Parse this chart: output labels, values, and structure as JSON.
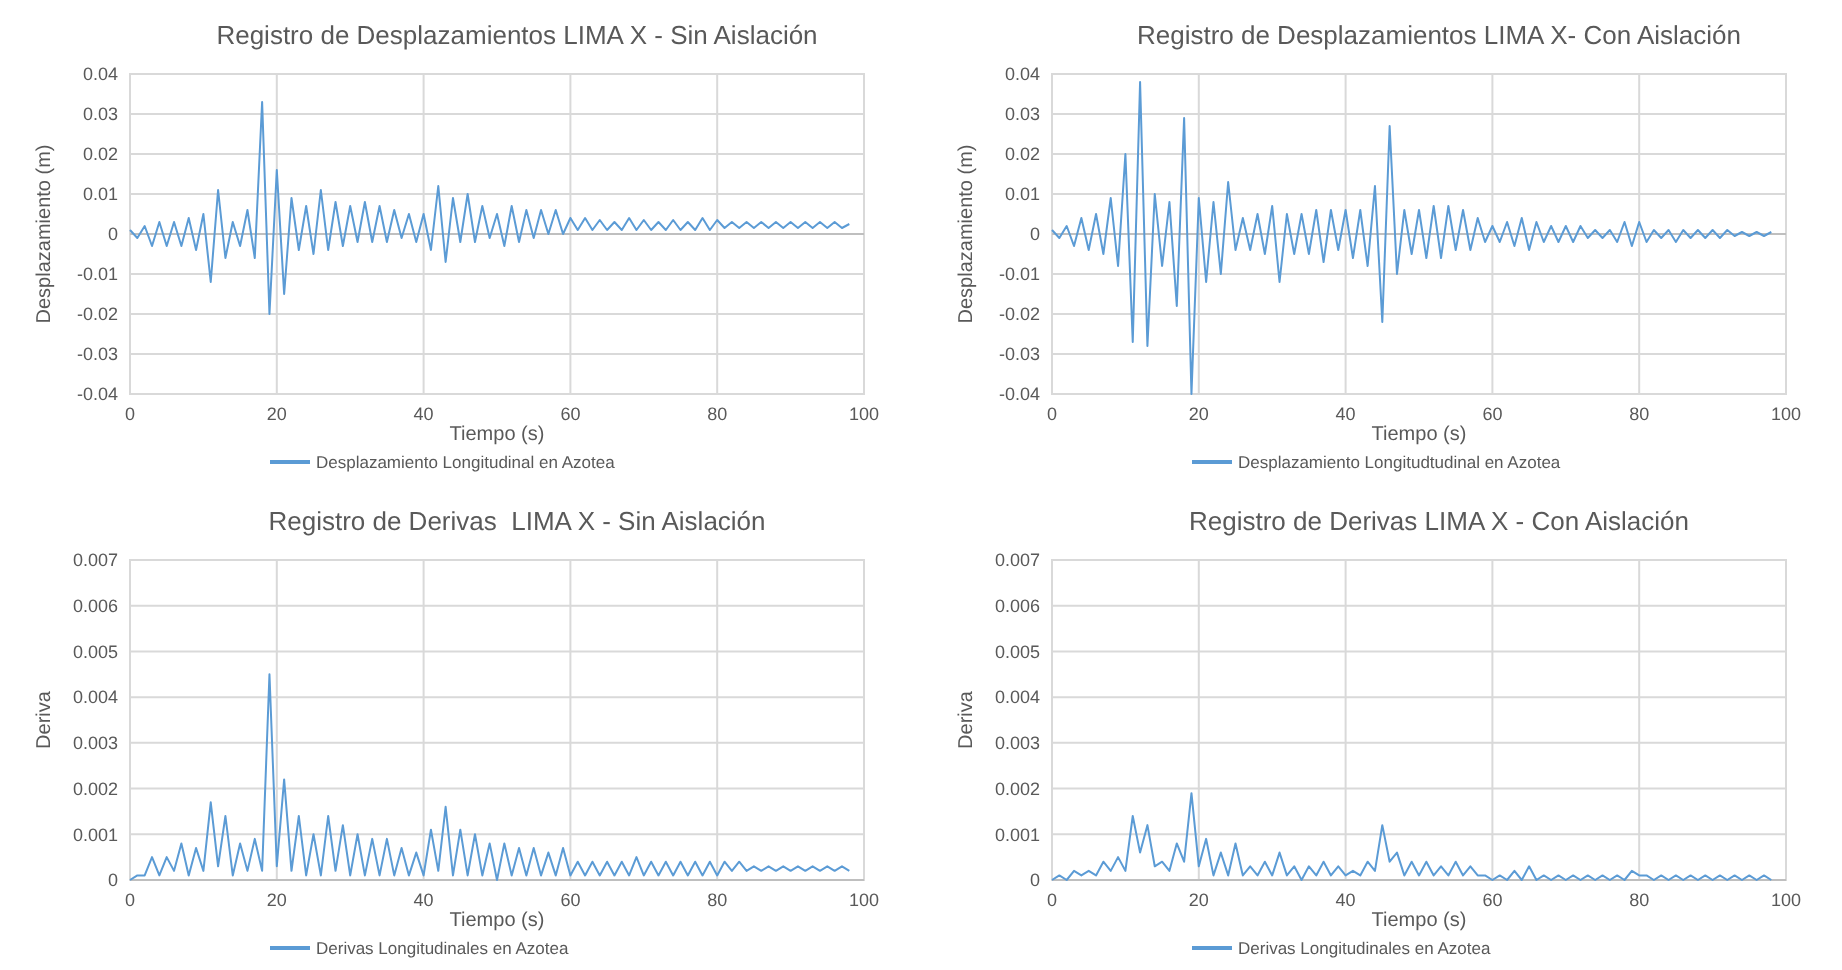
{
  "chart_data": [
    {
      "type": "line",
      "title": "Registro de Desplazamientos LIMA X - Sin Aislación",
      "xlabel": "Tiempo (s)",
      "ylabel": "Desplazamiento (m)",
      "xlim": [
        0,
        100
      ],
      "xticks": [
        0,
        20,
        40,
        60,
        80,
        100
      ],
      "ylim": [
        -0.04,
        0.04
      ],
      "yticks": [
        -0.04,
        -0.03,
        -0.02,
        -0.01,
        0,
        0.01,
        0.02,
        0.03,
        0.04
      ],
      "grid": true,
      "legend": "bottom",
      "marker": "none",
      "line_style": "solid",
      "x": [
        0,
        1,
        2,
        3,
        4,
        5,
        6,
        7,
        8,
        9,
        10,
        11,
        12,
        13,
        14,
        15,
        16,
        17,
        18,
        19,
        20,
        21,
        22,
        23,
        24,
        25,
        26,
        27,
        28,
        29,
        30,
        31,
        32,
        33,
        34,
        35,
        36,
        37,
        38,
        39,
        40,
        41,
        42,
        43,
        44,
        45,
        46,
        47,
        48,
        49,
        50,
        51,
        52,
        53,
        54,
        55,
        56,
        57,
        58,
        59,
        60,
        61,
        62,
        63,
        64,
        65,
        66,
        67,
        68,
        69,
        70,
        71,
        72,
        73,
        74,
        75,
        76,
        77,
        78,
        79,
        80,
        81,
        82,
        83,
        84,
        85,
        86,
        87,
        88,
        89,
        90,
        91,
        92,
        93,
        94,
        95,
        96,
        97,
        98
      ],
      "series": [
        {
          "name": "Desplazamiento Longitudinal en Azotea",
          "color": "#5b9bd5",
          "values": [
            0.001,
            -0.001,
            0.002,
            -0.003,
            0.003,
            -0.003,
            0.003,
            -0.003,
            0.004,
            -0.004,
            0.005,
            -0.012,
            0.011,
            -0.006,
            0.003,
            -0.003,
            0.006,
            -0.006,
            0.033,
            -0.02,
            0.016,
            -0.015,
            0.009,
            -0.004,
            0.007,
            -0.005,
            0.011,
            -0.004,
            0.008,
            -0.003,
            0.007,
            -0.002,
            0.008,
            -0.002,
            0.007,
            -0.002,
            0.006,
            -0.001,
            0.005,
            -0.002,
            0.005,
            -0.004,
            0.012,
            -0.007,
            0.009,
            -0.002,
            0.01,
            -0.002,
            0.007,
            -0.001,
            0.005,
            -0.003,
            0.007,
            -0.002,
            0.006,
            -0.001,
            0.006,
            0,
            0.006,
            0,
            0.004,
            0.001,
            0.004,
            0.001,
            0.0035,
            0.001,
            0.003,
            0.001,
            0.004,
            0.001,
            0.0035,
            0.001,
            0.003,
            0.001,
            0.0035,
            0.001,
            0.003,
            0.001,
            0.004,
            0.001,
            0.0035,
            0.0015,
            0.003,
            0.0015,
            0.003,
            0.0015,
            0.003,
            0.0015,
            0.003,
            0.0015,
            0.003,
            0.0015,
            0.003,
            0.0015,
            0.003,
            0.0015,
            0.003,
            0.0015,
            0.0025
          ]
        }
      ]
    },
    {
      "type": "line",
      "title": "Registro de Desplazamientos LIMA X- Con Aislación",
      "xlabel": "Tiempo (s)",
      "ylabel": "Desplazamiento (m)",
      "xlim": [
        0,
        100
      ],
      "xticks": [
        0,
        20,
        40,
        60,
        80,
        100
      ],
      "ylim": [
        -0.04,
        0.04
      ],
      "yticks": [
        -0.04,
        -0.03,
        -0.02,
        -0.01,
        0,
        0.01,
        0.02,
        0.03,
        0.04
      ],
      "grid": true,
      "legend": "bottom",
      "marker": "none",
      "line_style": "solid",
      "x": [
        0,
        1,
        2,
        3,
        4,
        5,
        6,
        7,
        8,
        9,
        10,
        11,
        12,
        13,
        14,
        15,
        16,
        17,
        18,
        19,
        20,
        21,
        22,
        23,
        24,
        25,
        26,
        27,
        28,
        29,
        30,
        31,
        32,
        33,
        34,
        35,
        36,
        37,
        38,
        39,
        40,
        41,
        42,
        43,
        44,
        45,
        46,
        47,
        48,
        49,
        50,
        51,
        52,
        53,
        54,
        55,
        56,
        57,
        58,
        59,
        60,
        61,
        62,
        63,
        64,
        65,
        66,
        67,
        68,
        69,
        70,
        71,
        72,
        73,
        74,
        75,
        76,
        77,
        78,
        79,
        80,
        81,
        82,
        83,
        84,
        85,
        86,
        87,
        88,
        89,
        90,
        91,
        92,
        93,
        94,
        95,
        96,
        97,
        98
      ],
      "series": [
        {
          "name": "Desplazamiento Longitudtudinal en Azotea",
          "color": "#5b9bd5",
          "values": [
            0.001,
            -0.001,
            0.002,
            -0.003,
            0.004,
            -0.004,
            0.005,
            -0.005,
            0.009,
            -0.008,
            0.02,
            -0.027,
            0.038,
            -0.028,
            0.01,
            -0.008,
            0.008,
            -0.018,
            0.029,
            -0.04,
            0.009,
            -0.012,
            0.008,
            -0.01,
            0.013,
            -0.004,
            0.004,
            -0.004,
            0.005,
            -0.005,
            0.007,
            -0.012,
            0.005,
            -0.005,
            0.005,
            -0.005,
            0.006,
            -0.007,
            0.006,
            -0.004,
            0.006,
            -0.006,
            0.006,
            -0.008,
            0.012,
            -0.022,
            0.027,
            -0.01,
            0.006,
            -0.005,
            0.006,
            -0.006,
            0.007,
            -0.006,
            0.007,
            -0.004,
            0.006,
            -0.004,
            0.004,
            -0.002,
            0.002,
            -0.002,
            0.003,
            -0.003,
            0.004,
            -0.004,
            0.003,
            -0.002,
            0.002,
            -0.002,
            0.002,
            -0.002,
            0.002,
            -0.001,
            0.001,
            -0.001,
            0.001,
            -0.002,
            0.003,
            -0.003,
            0.003,
            -0.002,
            0.001,
            -0.001,
            0.001,
            -0.002,
            0.001,
            -0.001,
            0.001,
            -0.001,
            0.001,
            -0.001,
            0.001,
            -0.0005,
            0.0005,
            -0.0005,
            0.0005,
            -0.0005,
            0.0005
          ]
        }
      ]
    },
    {
      "type": "line",
      "title": "Registro de Derivas  LIMA X - Sin Aislación",
      "xlabel": "Tiempo (s)",
      "ylabel": "Deriva",
      "xlim": [
        0,
        100
      ],
      "xticks": [
        0,
        20,
        40,
        60,
        80,
        100
      ],
      "ylim": [
        0,
        0.007
      ],
      "yticks": [
        0,
        0.001,
        0.002,
        0.003,
        0.004,
        0.005,
        0.006,
        0.007
      ],
      "grid": true,
      "legend": "bottom",
      "marker": "none",
      "line_style": "solid",
      "x": [
        0,
        1,
        2,
        3,
        4,
        5,
        6,
        7,
        8,
        9,
        10,
        11,
        12,
        13,
        14,
        15,
        16,
        17,
        18,
        19,
        20,
        21,
        22,
        23,
        24,
        25,
        26,
        27,
        28,
        29,
        30,
        31,
        32,
        33,
        34,
        35,
        36,
        37,
        38,
        39,
        40,
        41,
        42,
        43,
        44,
        45,
        46,
        47,
        48,
        49,
        50,
        51,
        52,
        53,
        54,
        55,
        56,
        57,
        58,
        59,
        60,
        61,
        62,
        63,
        64,
        65,
        66,
        67,
        68,
        69,
        70,
        71,
        72,
        73,
        74,
        75,
        76,
        77,
        78,
        79,
        80,
        81,
        82,
        83,
        84,
        85,
        86,
        87,
        88,
        89,
        90,
        91,
        92,
        93,
        94,
        95,
        96,
        97,
        98
      ],
      "series": [
        {
          "name": "Derivas Longitudinales en Azotea",
          "color": "#5b9bd5",
          "values": [
            0,
            0.0001,
            0.0001,
            0.0005,
            0.0001,
            0.0005,
            0.0002,
            0.0008,
            0.0001,
            0.0007,
            0.0002,
            0.0017,
            0.0003,
            0.0014,
            0.0001,
            0.0008,
            0.0002,
            0.0009,
            0.0002,
            0.0045,
            0.0003,
            0.0022,
            0.0002,
            0.0014,
            0.0001,
            0.001,
            0.0001,
            0.0014,
            0.0002,
            0.0012,
            0.0001,
            0.001,
            0.0001,
            0.0009,
            0.0001,
            0.0009,
            0.0001,
            0.0007,
            0.0001,
            0.0006,
            0.0001,
            0.0011,
            0.0002,
            0.0016,
            0.0001,
            0.0011,
            0.0001,
            0.001,
            0.0001,
            0.0008,
            0,
            0.0008,
            0.0001,
            0.0007,
            0.0001,
            0.0007,
            0.0001,
            0.0006,
            0.0001,
            0.0007,
            0.0001,
            0.0004,
            0.0001,
            0.0004,
            0.0001,
            0.0004,
            0.0001,
            0.0004,
            0.0001,
            0.0005,
            0.0001,
            0.0004,
            0.0001,
            0.0004,
            0.0001,
            0.0004,
            0.0001,
            0.0004,
            0.0001,
            0.0004,
            0.0001,
            0.0004,
            0.0002,
            0.0004,
            0.0002,
            0.0003,
            0.0002,
            0.0003,
            0.0002,
            0.0003,
            0.0002,
            0.0003,
            0.0002,
            0.0003,
            0.0002,
            0.0003,
            0.0002,
            0.0003,
            0.0002
          ]
        }
      ]
    },
    {
      "type": "line",
      "title": "Registro de Derivas LIMA X - Con Aislación",
      "xlabel": "Tiempo (s)",
      "ylabel": "Deriva",
      "xlim": [
        0,
        100
      ],
      "xticks": [
        0,
        20,
        40,
        60,
        80,
        100
      ],
      "ylim": [
        0,
        0.007
      ],
      "yticks": [
        0,
        0.001,
        0.002,
        0.003,
        0.004,
        0.005,
        0.006,
        0.007
      ],
      "grid": true,
      "legend": "bottom",
      "marker": "none",
      "line_style": "solid",
      "x": [
        0,
        1,
        2,
        3,
        4,
        5,
        6,
        7,
        8,
        9,
        10,
        11,
        12,
        13,
        14,
        15,
        16,
        17,
        18,
        19,
        20,
        21,
        22,
        23,
        24,
        25,
        26,
        27,
        28,
        29,
        30,
        31,
        32,
        33,
        34,
        35,
        36,
        37,
        38,
        39,
        40,
        41,
        42,
        43,
        44,
        45,
        46,
        47,
        48,
        49,
        50,
        51,
        52,
        53,
        54,
        55,
        56,
        57,
        58,
        59,
        60,
        61,
        62,
        63,
        64,
        65,
        66,
        67,
        68,
        69,
        70,
        71,
        72,
        73,
        74,
        75,
        76,
        77,
        78,
        79,
        80,
        81,
        82,
        83,
        84,
        85,
        86,
        87,
        88,
        89,
        90,
        91,
        92,
        93,
        94,
        95,
        96,
        97,
        98
      ],
      "series": [
        {
          "name": "Derivas Longitudinales en Azotea",
          "color": "#5b9bd5",
          "values": [
            0,
            0.0001,
            0,
            0.0002,
            0.0001,
            0.0002,
            0.0001,
            0.0004,
            0.0002,
            0.0005,
            0.0002,
            0.0014,
            0.0006,
            0.0012,
            0.0003,
            0.0004,
            0.0002,
            0.0008,
            0.0004,
            0.0019,
            0.0003,
            0.0009,
            0.0001,
            0.0006,
            0.0001,
            0.0008,
            0.0001,
            0.0003,
            0.0001,
            0.0004,
            0.0001,
            0.0006,
            0.0001,
            0.0003,
            0,
            0.0003,
            0.0001,
            0.0004,
            0.0001,
            0.0003,
            0.0001,
            0.0002,
            0.0001,
            0.0004,
            0.0002,
            0.0012,
            0.0004,
            0.0006,
            0.0001,
            0.0004,
            0.0001,
            0.0004,
            0.0001,
            0.0003,
            0.0001,
            0.0004,
            0.0001,
            0.0003,
            0.0001,
            0.0001,
            0,
            0.0001,
            0,
            0.0002,
            0,
            0.0003,
            0,
            0.0001,
            0,
            0.0001,
            0,
            0.0001,
            0,
            0.0001,
            0,
            0.0001,
            0,
            0.0001,
            0,
            0.0002,
            0.0001,
            0.0001,
            0,
            0.0001,
            0,
            0.0001,
            0,
            0.0001,
            0,
            0.0001,
            0,
            0.0001,
            0,
            0.0001,
            0,
            0.0001,
            0,
            0.0001,
            0
          ]
        }
      ]
    }
  ]
}
